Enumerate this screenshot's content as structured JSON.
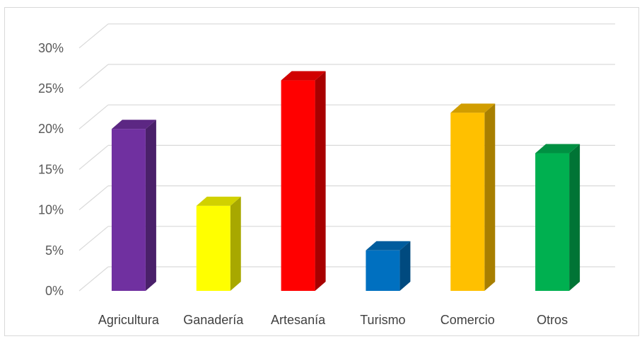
{
  "chart_data": {
    "type": "bar",
    "style": "3d-column",
    "categories": [
      "Agricultura",
      "Ganadería",
      "Artesanía",
      "Turismo",
      "Comercio",
      "Otros"
    ],
    "values": [
      20,
      10.5,
      26,
      5,
      22,
      17
    ],
    "value_unit": "%",
    "colors": [
      "#7030A0",
      "#FFFF00",
      "#FF0000",
      "#0070C0",
      "#FFC000",
      "#00B050"
    ],
    "yticks": [
      "0%",
      "5%",
      "10%",
      "15%",
      "20%",
      "25%",
      "30%"
    ],
    "ylim": [
      0,
      30
    ],
    "grid": true,
    "legend": "none",
    "title": "",
    "xlabel": "",
    "ylabel": ""
  }
}
